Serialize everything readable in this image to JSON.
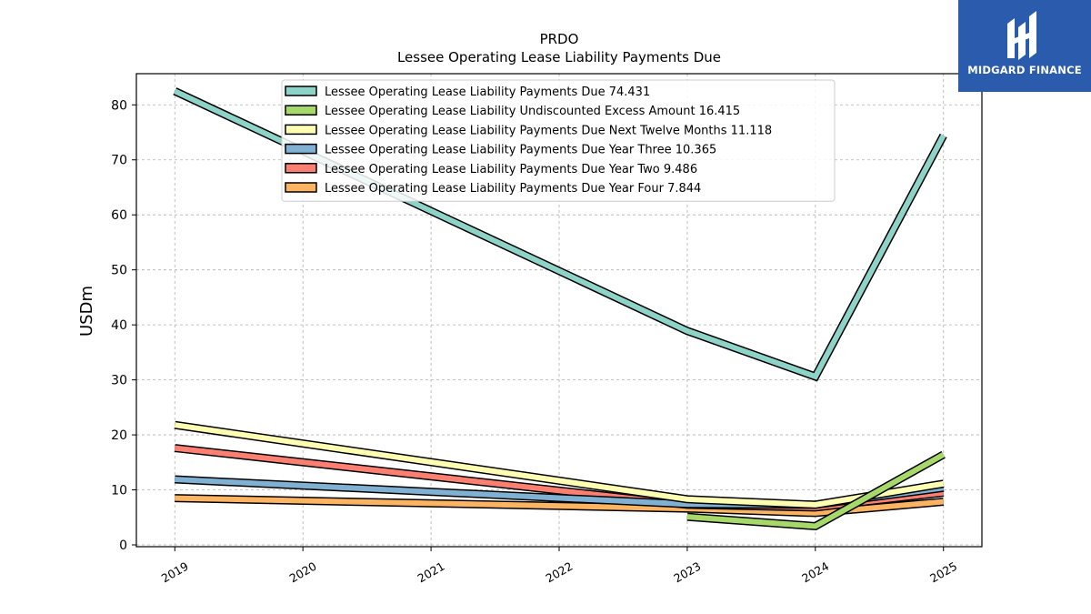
{
  "logo": {
    "text": "MIDGARD FINANCE",
    "bg_color": "#2b5bad",
    "mark": "mh-monogram-icon"
  },
  "chart_data": {
    "type": "line",
    "title": "PRDO",
    "subtitle": "Lessee Operating Lease Liability Payments Due",
    "xlabel": "",
    "ylabel": "USDm",
    "x": [
      2019,
      2020,
      2021,
      2022,
      2023,
      2024,
      2025
    ],
    "ylim": [
      0,
      86
    ],
    "yticks": [
      0,
      10,
      20,
      30,
      40,
      50,
      60,
      70,
      80
    ],
    "grid": true,
    "legend_position": "top-center",
    "series": [
      {
        "name": "Lessee Operating Lease Liability Payments Due  74.431",
        "color": "#8dd3c7",
        "values": [
          82.5,
          null,
          null,
          null,
          38.9,
          30.6,
          74.431
        ]
      },
      {
        "name": "Lessee Operating Lease Liability Undiscounted Excess Amount  16.415",
        "color": "#a6d96a",
        "values": [
          null,
          null,
          null,
          null,
          5.1,
          3.4,
          16.415
        ]
      },
      {
        "name": "Lessee Operating Lease Liability Payments Due Next Twelve Months  11.118",
        "color": "#ffffb3",
        "values": [
          21.8,
          null,
          null,
          null,
          8.3,
          7.3,
          11.118
        ]
      },
      {
        "name": "Lessee Operating Lease Liability Payments Due Year Three  10.365",
        "color": "#80b1d3",
        "values": [
          11.9,
          null,
          null,
          null,
          7.4,
          7.3,
          10.365
        ]
      },
      {
        "name": "Lessee Operating Lease Liability Payments Due Year Two  9.486",
        "color": "#fb8072",
        "values": [
          17.6,
          null,
          null,
          null,
          7.3,
          6.8,
          9.486
        ]
      },
      {
        "name": "Lessee Operating Lease Liability Payments Due Year Four  7.844",
        "color": "#fdb462",
        "values": [
          8.5,
          null,
          null,
          null,
          6.6,
          5.8,
          7.844
        ]
      }
    ]
  }
}
